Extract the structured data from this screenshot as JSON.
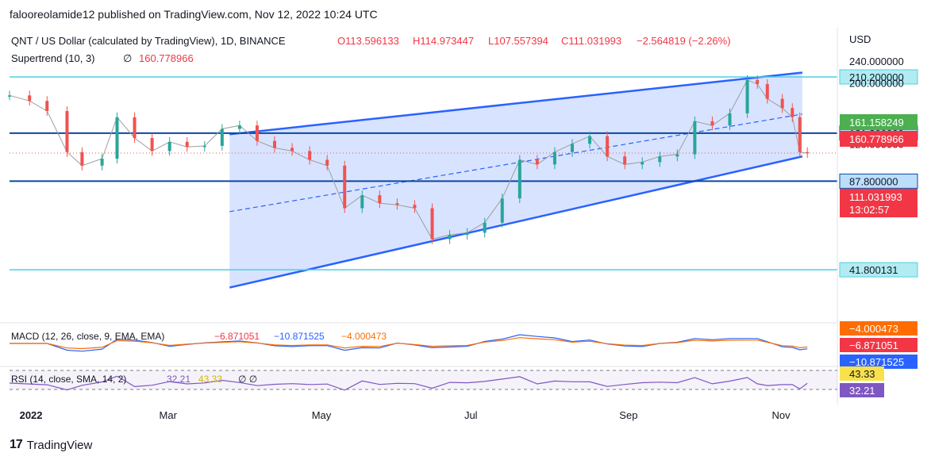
{
  "header": {
    "publisher": "falooreolamide12 published on TradingView.com, Nov 12, 2022 10:24 UTC"
  },
  "footer": {
    "brand": "TradingView"
  },
  "legend": {
    "symbol": "QNT / US Dollar (calculated by TradingView), 1D, BINANCE",
    "open": "O113.596133",
    "high": "H114.973447",
    "low": "L107.557394",
    "close": "C111.031993",
    "change": "−2.564819 (−2.26%)",
    "supertrend_label": "Supertrend (10, 3)",
    "supertrend_icon": "∅",
    "supertrend_value": "160.778966",
    "macd_label": "MACD (12, 26, close, 9, EMA, EMA)",
    "macd_hist": "−6.871051",
    "macd_line": "−10.871525",
    "macd_signal": "−4.000473",
    "rsi_label": "RSI (14, close, SMA, 14, 2)",
    "rsi_value": "32.21",
    "rsi_ma": "43.33",
    "rsi_icons": "∅ ∅"
  },
  "colors": {
    "up": "#26a69a",
    "down": "#ef5350",
    "supertrend_up": "#4caf50",
    "supertrend_down": "#f23645",
    "channel": "#2962ff",
    "cyan_line": "#4dd0e1",
    "navy_line": "#0d47a1",
    "macd": "#2962ff",
    "signal": "#ff6d00",
    "rsi": "#7e57c2",
    "rsi_ma": "#f9e14b"
  },
  "chart_data": {
    "type": "candlestick",
    "title": "QNT / US Dollar (calculated by TradingView), 1D, BINANCE",
    "y_axis": {
      "unit": "USD",
      "scale": "log",
      "ticks": [
        "240.000000",
        "200.000000",
        "120.000000"
      ],
      "ylim": [
        30,
        260
      ]
    },
    "x_axis": {
      "ticks": [
        "2022",
        "Mar",
        "May",
        "Jul",
        "Sep",
        "Nov"
      ],
      "ticks_date": [
        "2022-01-01",
        "2022-03-01",
        "2022-05-01",
        "2022-07-01",
        "2022-09-01",
        "2022-11-01"
      ],
      "xlim": [
        "2021-12-28",
        "2022-11-24"
      ]
    },
    "close_series": [
      {
        "date": "2021-12-28",
        "close": 180
      },
      {
        "date": "2022-01-05",
        "close": 172
      },
      {
        "date": "2022-01-12",
        "close": 158
      },
      {
        "date": "2022-01-20",
        "close": 112
      },
      {
        "date": "2022-01-26",
        "close": 100
      },
      {
        "date": "2022-02-03",
        "close": 106
      },
      {
        "date": "2022-02-09",
        "close": 150
      },
      {
        "date": "2022-02-16",
        "close": 126
      },
      {
        "date": "2022-02-23",
        "close": 113
      },
      {
        "date": "2022-03-02",
        "close": 122
      },
      {
        "date": "2022-03-09",
        "close": 117
      },
      {
        "date": "2022-03-16",
        "close": 118
      },
      {
        "date": "2022-03-23",
        "close": 136
      },
      {
        "date": "2022-03-30",
        "close": 140
      },
      {
        "date": "2022-04-06",
        "close": 123
      },
      {
        "date": "2022-04-13",
        "close": 116
      },
      {
        "date": "2022-04-20",
        "close": 113
      },
      {
        "date": "2022-04-27",
        "close": 105
      },
      {
        "date": "2022-05-04",
        "close": 100
      },
      {
        "date": "2022-05-11",
        "close": 70
      },
      {
        "date": "2022-05-18",
        "close": 78
      },
      {
        "date": "2022-05-25",
        "close": 73
      },
      {
        "date": "2022-06-01",
        "close": 72
      },
      {
        "date": "2022-06-08",
        "close": 70
      },
      {
        "date": "2022-06-15",
        "close": 54
      },
      {
        "date": "2022-06-22",
        "close": 56
      },
      {
        "date": "2022-06-29",
        "close": 57
      },
      {
        "date": "2022-07-06",
        "close": 62
      },
      {
        "date": "2022-07-13",
        "close": 76
      },
      {
        "date": "2022-07-20",
        "close": 105
      },
      {
        "date": "2022-07-27",
        "close": 101
      },
      {
        "date": "2022-08-03",
        "close": 112
      },
      {
        "date": "2022-08-10",
        "close": 120
      },
      {
        "date": "2022-08-17",
        "close": 128
      },
      {
        "date": "2022-08-24",
        "close": 108
      },
      {
        "date": "2022-08-31",
        "close": 101
      },
      {
        "date": "2022-09-07",
        "close": 103
      },
      {
        "date": "2022-09-14",
        "close": 108
      },
      {
        "date": "2022-09-21",
        "close": 110
      },
      {
        "date": "2022-09-28",
        "close": 145
      },
      {
        "date": "2022-10-05",
        "close": 140
      },
      {
        "date": "2022-10-12",
        "close": 155
      },
      {
        "date": "2022-10-19",
        "close": 205
      },
      {
        "date": "2022-10-23",
        "close": 198
      },
      {
        "date": "2022-10-27",
        "close": 175
      },
      {
        "date": "2022-11-02",
        "close": 162
      },
      {
        "date": "2022-11-06",
        "close": 150
      },
      {
        "date": "2022-11-09",
        "close": 112
      },
      {
        "date": "2022-11-12",
        "close": 111.03
      }
    ],
    "levels": [
      {
        "value": 210.2,
        "label": "210.200000",
        "style": "cyan"
      },
      {
        "value": 131.3,
        "label": "131.300000",
        "style": "navy"
      },
      {
        "value": 87.8,
        "label": "87.800000",
        "style": "navy"
      },
      {
        "value": 41.800131,
        "label": "41.800131",
        "style": "cyan"
      }
    ],
    "channel": {
      "upper": [
        {
          "date": "2022-03-26",
          "price": 130
        },
        {
          "date": "2022-11-10",
          "price": 218
        }
      ],
      "lower": [
        {
          "date": "2022-03-26",
          "price": 36
        },
        {
          "date": "2022-11-10",
          "price": 108
        }
      ],
      "mid": [
        {
          "date": "2022-03-26",
          "price": 68
        },
        {
          "date": "2022-11-10",
          "price": 154
        }
      ]
    },
    "price_labels": [
      {
        "text": "161.158249",
        "color": "#4caf50"
      },
      {
        "text": "160.778966",
        "color": "#f23645"
      },
      {
        "text": "111.031993",
        "sub": "13:02:57",
        "color": "#f23645"
      }
    ],
    "macd_scale_labels": [
      "−4.000473",
      "−6.871051",
      "−10.871525"
    ],
    "rsi_scale_labels": [
      "43.33",
      "32.21"
    ]
  }
}
